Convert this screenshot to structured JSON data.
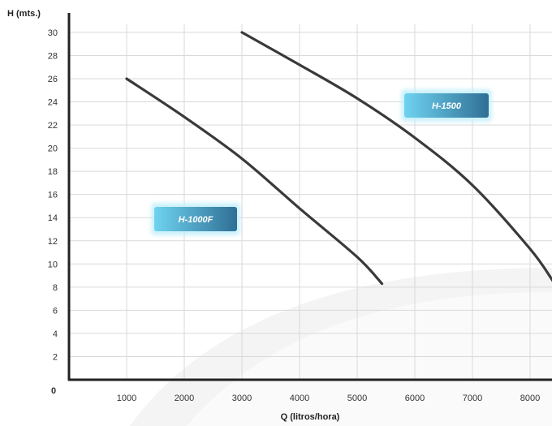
{
  "chart_data": {
    "type": "line",
    "xlabel": "Q (litros/hora)",
    "ylabel": "H (mts.)",
    "origin_label": "0",
    "xlim": [
      0,
      8400
    ],
    "ylim": [
      0,
      31
    ],
    "x_ticks": [
      1000,
      2000,
      3000,
      4000,
      5000,
      6000,
      7000,
      8000
    ],
    "y_ticks": [
      2,
      4,
      6,
      8,
      10,
      12,
      14,
      16,
      18,
      20,
      22,
      24,
      26,
      28,
      30
    ],
    "grid": true,
    "series": [
      {
        "name": "H-1000F",
        "color": "#3a3a3a",
        "points": [
          [
            1000,
            26
          ],
          [
            2000,
            22.7
          ],
          [
            3000,
            19.1
          ],
          [
            4000,
            14.8
          ],
          [
            5000,
            10.6
          ],
          [
            5430,
            8.3
          ]
        ]
      },
      {
        "name": "H-1500",
        "color": "#3a3a3a",
        "points": [
          [
            3000,
            30
          ],
          [
            4000,
            27.2
          ],
          [
            5000,
            24.3
          ],
          [
            6000,
            20.9
          ],
          [
            7000,
            16.8
          ],
          [
            8000,
            11.3
          ],
          [
            8400,
            8.5
          ]
        ]
      }
    ]
  },
  "colors": {
    "badge_light": "#6fd3f0",
    "badge_dark": "#2f6f95",
    "grid": "#d9d9d9",
    "axis": "#222222"
  }
}
